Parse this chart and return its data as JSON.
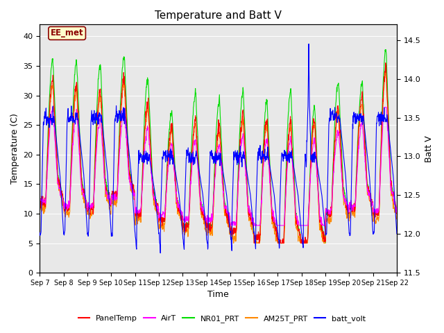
{
  "title": "Temperature and Batt V",
  "xlabel": "Time",
  "ylabel_left": "Temperature (C)",
  "ylabel_right": "Batt V",
  "annotation": "EE_met",
  "ylim_left": [
    0,
    42
  ],
  "ylim_right": [
    11.5,
    14.7
  ],
  "yticks_left": [
    0,
    5,
    10,
    15,
    20,
    25,
    30,
    35,
    40
  ],
  "yticks_right": [
    11.5,
    12.0,
    12.5,
    13.0,
    13.5,
    14.0,
    14.5
  ],
  "colors": {
    "PanelTemp": "#ff0000",
    "AirT": "#ff00ff",
    "NR01_PRT": "#00dd00",
    "AM25T_PRT": "#ff8800",
    "batt_volt": "#0000ff"
  },
  "legend_labels": [
    "PanelTemp",
    "AirT",
    "NR01_PRT",
    "AM25T_PRT",
    "batt_volt"
  ],
  "background_color": "#e8e8e8",
  "title_fontsize": 11,
  "axis_fontsize": 9,
  "tick_fontsize": 8,
  "n_days": 15,
  "pts_per_day": 96
}
